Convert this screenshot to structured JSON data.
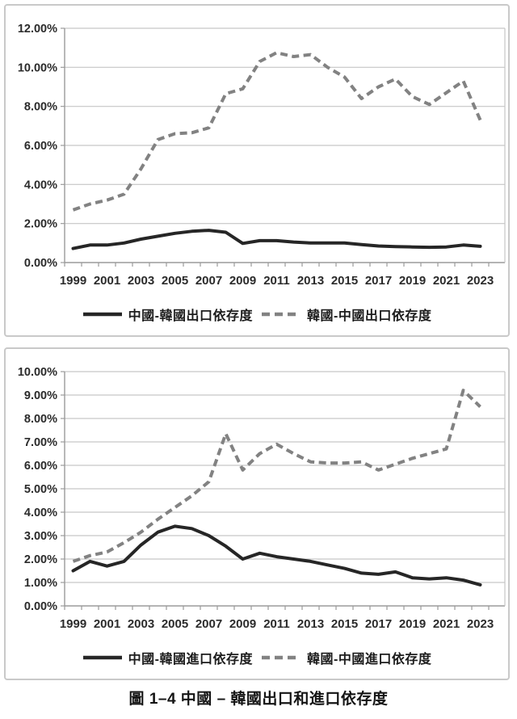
{
  "page": {
    "caption": "圖 1–4 中國 – 韓國出口和進口依存度"
  },
  "colors": {
    "solid_line": "#262626",
    "dashed_line": "#828282",
    "gridline": "#c6c6c6",
    "axis": "#9b9b9b",
    "tick_text": "#2b2b2b"
  },
  "chart_data": [
    {
      "type": "line",
      "title": "",
      "xlabel": "",
      "ylabel": "",
      "categories": [
        1999,
        2000,
        2001,
        2002,
        2003,
        2004,
        2005,
        2006,
        2007,
        2008,
        2009,
        2010,
        2011,
        2012,
        2013,
        2014,
        2015,
        2016,
        2017,
        2018,
        2019,
        2020,
        2021,
        2022,
        2023
      ],
      "x_tick_labels": [
        "1999",
        "2001",
        "2003",
        "2005",
        "2007",
        "2009",
        "2011",
        "2013",
        "2015",
        "2017",
        "2019",
        "2021",
        "2023"
      ],
      "x_label_every": 2,
      "ylim": [
        0,
        12
      ],
      "y_step": 2,
      "y_tick_labels": [
        "0.00%",
        "2.00%",
        "4.00%",
        "6.00%",
        "8.00%",
        "10.00%",
        "12.00%"
      ],
      "grid": true,
      "legend_position": "bottom",
      "series": [
        {
          "name": "中國-韓國出口依存度",
          "style": "solid",
          "values": [
            0.72,
            0.9,
            0.9,
            1.0,
            1.2,
            1.35,
            1.5,
            1.6,
            1.65,
            1.55,
            0.98,
            1.12,
            1.12,
            1.05,
            1.0,
            1.0,
            1.0,
            0.92,
            0.85,
            0.82,
            0.8,
            0.78,
            0.8,
            0.9,
            0.83
          ]
        },
        {
          "name": "韓國-中國出口依存度",
          "style": "dashed",
          "values": [
            2.7,
            3.0,
            3.2,
            3.5,
            4.8,
            6.3,
            6.6,
            6.65,
            6.9,
            8.65,
            8.9,
            10.3,
            10.75,
            10.55,
            10.65,
            10.0,
            9.5,
            8.4,
            9.0,
            9.4,
            8.5,
            8.1,
            8.7,
            9.3,
            7.3
          ]
        }
      ]
    },
    {
      "type": "line",
      "title": "",
      "xlabel": "",
      "ylabel": "",
      "categories": [
        1999,
        2000,
        2001,
        2002,
        2003,
        2004,
        2005,
        2006,
        2007,
        2008,
        2009,
        2010,
        2011,
        2012,
        2013,
        2014,
        2015,
        2016,
        2017,
        2018,
        2019,
        2020,
        2021,
        2022,
        2023
      ],
      "x_tick_labels": [
        "1999",
        "2001",
        "2003",
        "2005",
        "2007",
        "2009",
        "2011",
        "2013",
        "2015",
        "2017",
        "2019",
        "2021",
        "2023"
      ],
      "x_label_every": 2,
      "ylim": [
        0,
        10
      ],
      "y_step": 1,
      "y_tick_labels": [
        "0.00%",
        "1.00%",
        "2.00%",
        "3.00%",
        "4.00%",
        "5.00%",
        "6.00%",
        "7.00%",
        "8.00%",
        "9.00%",
        "10.00%"
      ],
      "grid": true,
      "legend_position": "bottom",
      "series": [
        {
          "name": "中國-韓國進口依存度",
          "style": "solid",
          "values": [
            1.5,
            1.9,
            1.7,
            1.9,
            2.6,
            3.15,
            3.4,
            3.3,
            3.0,
            2.55,
            2.0,
            2.25,
            2.1,
            2.0,
            1.9,
            1.75,
            1.6,
            1.4,
            1.35,
            1.45,
            1.2,
            1.15,
            1.2,
            1.1,
            0.9
          ]
        },
        {
          "name": "韓國-中國進口依存度",
          "style": "dashed",
          "values": [
            1.9,
            2.15,
            2.3,
            2.7,
            3.15,
            3.7,
            4.2,
            4.7,
            5.3,
            7.35,
            5.8,
            6.5,
            6.9,
            6.5,
            6.15,
            6.1,
            6.1,
            6.15,
            5.8,
            6.05,
            6.3,
            6.5,
            6.7,
            9.2,
            8.5
          ]
        }
      ]
    }
  ]
}
